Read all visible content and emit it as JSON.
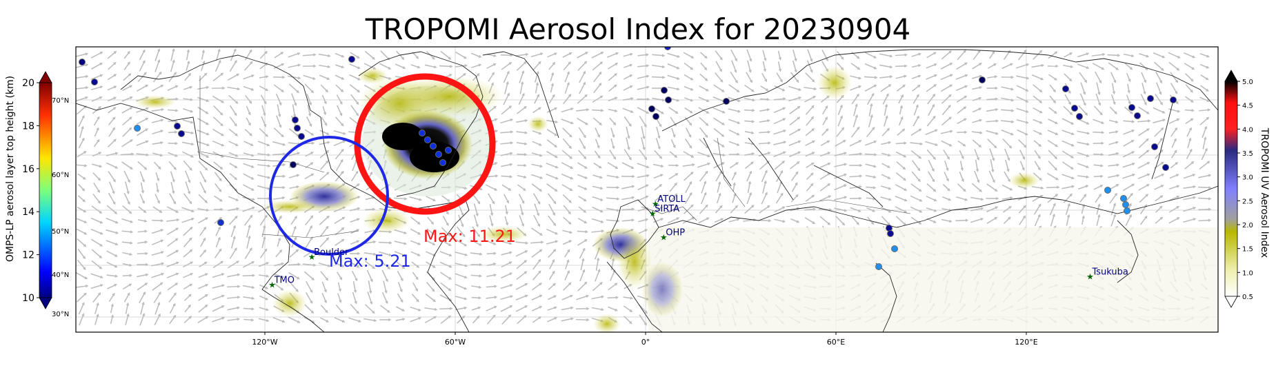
{
  "title": "TROPOMI Aerosol Index for 20230904",
  "map": {
    "lon_ticks": [
      "120°W",
      "60°W",
      "0°",
      "60°E",
      "120°E"
    ],
    "lat_ticks_inner": [
      "70°N",
      "60°N",
      "50°N",
      "40°N",
      "30°N"
    ],
    "gridlines": true,
    "wind_vectors": true,
    "circles": [
      {
        "name": "Max: 11.21",
        "color": "#ff1414",
        "lon": -80,
        "lat": 61
      },
      {
        "name": "Max: 5.21",
        "color": "#1e28e6",
        "lon": -105,
        "lat": 55
      }
    ],
    "labels": {
      "max_red": "Max: 11.21",
      "max_blue": "Max: 5.21"
    },
    "stations": [
      {
        "name": "ATOLL",
        "lon": 3.1,
        "lat": 50.6
      },
      {
        "name": "SIRTA",
        "lon": 2.2,
        "lat": 48.7
      },
      {
        "name": "OHP",
        "lon": 5.7,
        "lat": 43.9
      },
      {
        "name": "Boulder",
        "lon": -105.2,
        "lat": 40.0
      },
      {
        "name": "TMO",
        "lon": -117.7,
        "lat": 34.4
      },
      {
        "name": "Tsukuba",
        "lon": 140.1,
        "lat": 36.1
      }
    ]
  },
  "left_colorbar": {
    "label": "OMPS-LP aerosol layer top height (km)",
    "ticks": [
      "20",
      "18",
      "16",
      "14",
      "12",
      "10"
    ],
    "range": [
      10,
      20
    ]
  },
  "right_colorbar": {
    "label": "TROPOMI UV Aerosol Index",
    "ticks": [
      "5.0",
      "4.5",
      "4.0",
      "3.5",
      "3.0",
      "2.5",
      "2.0",
      "1.5",
      "1.0",
      "0.5"
    ],
    "range": [
      0.5,
      5.0
    ]
  },
  "colors": {
    "red_circle": "#ff1414",
    "blue_circle": "#1e28e6",
    "station_label": "#000080",
    "station_marker": "#006400"
  }
}
